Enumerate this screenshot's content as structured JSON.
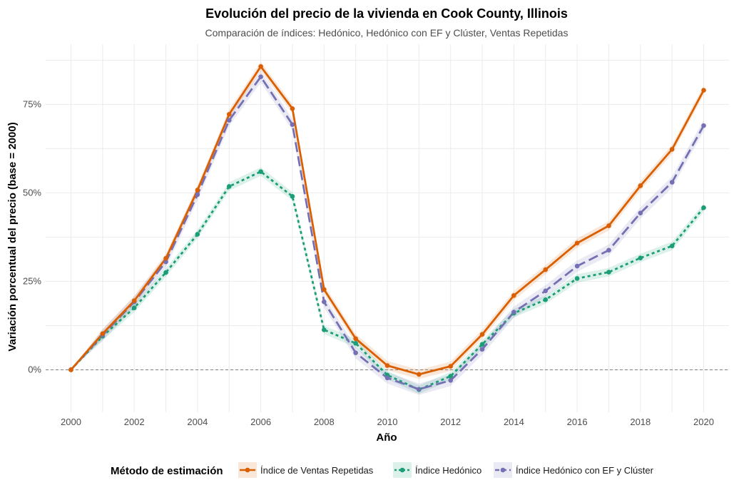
{
  "chart_data": {
    "type": "line",
    "title": "Evolución del precio de la vivienda en Cook County, Illinois",
    "subtitle": "Comparación de índices: Hedónico, Hedónico con EF y Clúster, Ventas Repetidas",
    "xlabel": "Año",
    "ylabel": "Variación porcentual del precio (base = 2000)",
    "xlim": [
      1999.2,
      2020.8
    ],
    "ylim": [
      -12,
      92
    ],
    "x_ticks": [
      2000,
      2002,
      2004,
      2006,
      2008,
      2010,
      2012,
      2014,
      2016,
      2018,
      2020
    ],
    "x_tick_labels": [
      "2000",
      "2002",
      "2004",
      "2006",
      "2008",
      "2010",
      "2012",
      "2014",
      "2016",
      "2018",
      "2020"
    ],
    "y_ticks": [
      0,
      25,
      50,
      75
    ],
    "y_tick_labels": [
      "0%",
      "25%",
      "50%",
      "75%"
    ],
    "reference_line": 0,
    "grid": true,
    "legend_title": "Método de estimación",
    "legend_position": "bottom",
    "x": [
      2000,
      2001,
      2002,
      2003,
      2004,
      2005,
      2006,
      2007,
      2008,
      2009,
      2010,
      2011,
      2012,
      2013,
      2014,
      2015,
      2016,
      2017,
      2018,
      2019,
      2020
    ],
    "series": [
      {
        "name": "Índice de Ventas Repetidas",
        "color": "#D95F02",
        "dash": "solid",
        "values": [
          0,
          10.2,
          19.5,
          31.5,
          50.8,
          72.2,
          85.7,
          73.8,
          22.7,
          8.8,
          1.2,
          -1.3,
          1.0,
          10.0,
          21.0,
          28.3,
          35.8,
          40.7,
          52.0,
          62.3,
          79.0
        ],
        "band": 1.3
      },
      {
        "name": "Índice Hedónico",
        "color": "#1B9E77",
        "dash": "dotted",
        "values": [
          0,
          9.5,
          17.5,
          27.5,
          38.3,
          51.8,
          56.0,
          49.0,
          11.3,
          7.5,
          -1.5,
          -5.6,
          -1.8,
          7.2,
          16.0,
          19.8,
          25.8,
          27.6,
          31.6,
          35.0,
          45.8
        ],
        "band": 1.2
      },
      {
        "name": "Índice Hedónico con EF y Clúster",
        "color": "#7570B3",
        "dash": "dashed",
        "values": [
          0,
          9.8,
          19.2,
          30.5,
          49.5,
          70.5,
          82.8,
          69.3,
          19.2,
          4.8,
          -2.3,
          -5.5,
          -3.0,
          5.8,
          16.3,
          22.3,
          29.3,
          33.8,
          44.3,
          53.0,
          69.0
        ],
        "band": 1.6
      }
    ]
  }
}
